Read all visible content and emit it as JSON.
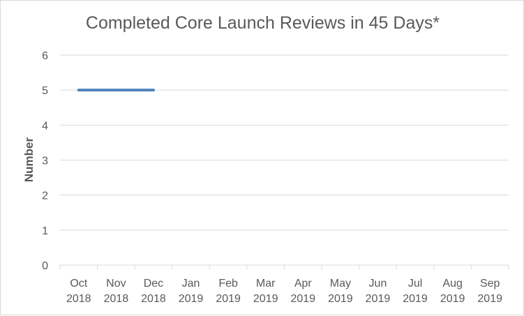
{
  "chart_data": {
    "type": "line",
    "title": "Completed Core Launch Reviews in 45 Days*",
    "xlabel": "",
    "ylabel": "Number",
    "categories": [
      [
        "Oct",
        "2018"
      ],
      [
        "Nov",
        "2018"
      ],
      [
        "Dec",
        "2018"
      ],
      [
        "Jan",
        "2019"
      ],
      [
        "Feb",
        "2019"
      ],
      [
        "Mar",
        "2019"
      ],
      [
        "Apr",
        "2019"
      ],
      [
        "May",
        "2019"
      ],
      [
        "Jun",
        "2019"
      ],
      [
        "Jul",
        "2019"
      ],
      [
        "Aug",
        "2019"
      ],
      [
        "Sep",
        "2019"
      ]
    ],
    "series": [
      {
        "values": [
          5,
          5,
          5,
          null,
          null,
          null,
          null,
          null,
          null,
          null,
          null,
          null
        ]
      }
    ],
    "ylim": [
      0,
      6
    ],
    "yticks": [
      0,
      1,
      2,
      3,
      4,
      5,
      6
    ],
    "grid": true,
    "legend": "none",
    "colors": {
      "line": "#4f81bd",
      "grid": "#d9d9d9",
      "text": "#595959"
    }
  }
}
